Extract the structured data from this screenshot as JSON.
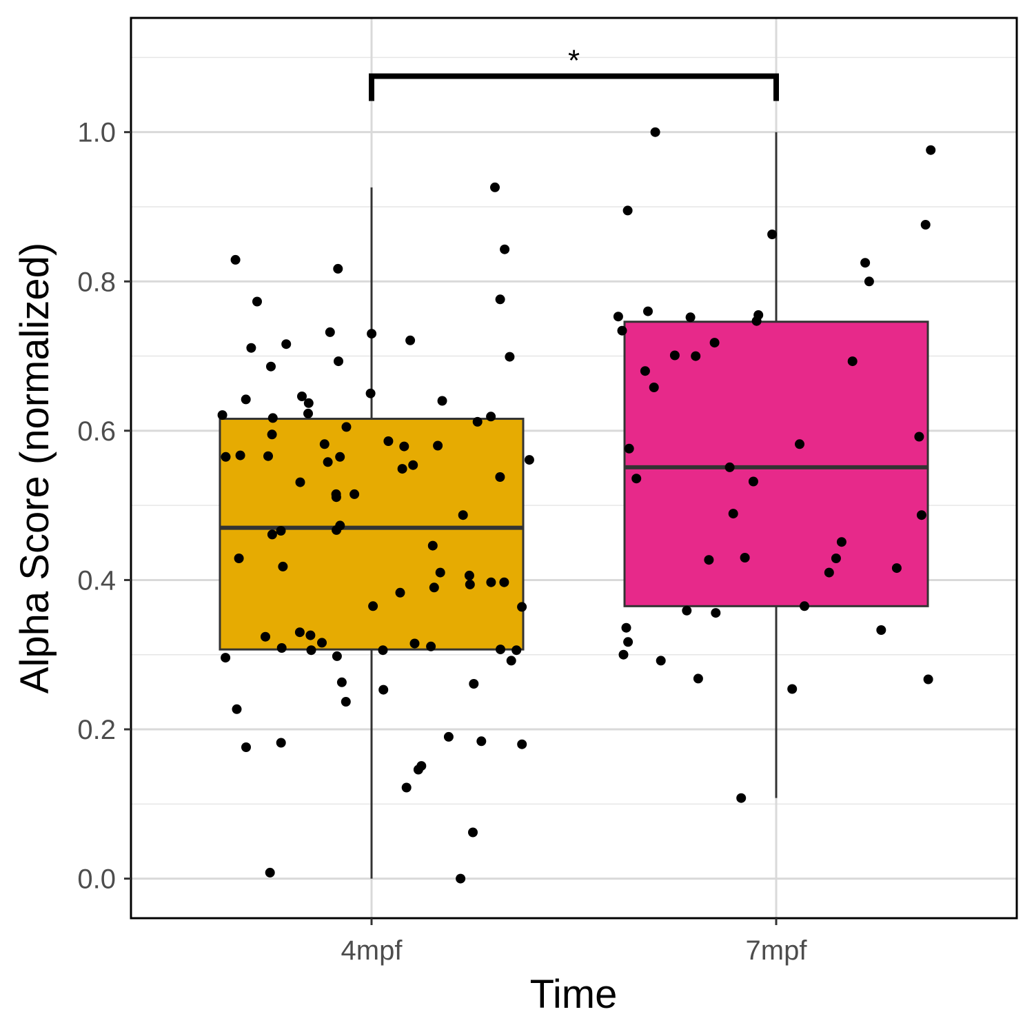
{
  "chart_data": {
    "type": "box",
    "xlabel": "Time",
    "ylabel": "Alpha Score (normalized)",
    "ylim": [
      -0.053,
      1.153
    ],
    "yticks": [
      0.0,
      0.2,
      0.4,
      0.6,
      0.8,
      1.0
    ],
    "ytick_labels": [
      "0.0",
      "0.2",
      "0.4",
      "0.6",
      "0.8",
      "1.0"
    ],
    "grid": true,
    "categories": [
      "4mpf",
      "7mpf"
    ],
    "boxes": [
      {
        "category": "4mpf",
        "color": "#E6AB02",
        "min": 0.0,
        "q1": 0.307,
        "median": 0.47,
        "q3": 0.616,
        "max": 0.926
      },
      {
        "category": "7mpf",
        "color": "#E7298A",
        "min": 0.108,
        "q1": 0.365,
        "median": 0.551,
        "q3": 0.746,
        "max": 1.0
      }
    ],
    "points": [
      {
        "category": "4mpf",
        "values": [
          0.926,
          0.843,
          0.829,
          0.817,
          0.776,
          0.773,
          0.732,
          0.73,
          0.721,
          0.716,
          0.711,
          0.699,
          0.693,
          0.686,
          0.65,
          0.646,
          0.642,
          0.64,
          0.637,
          0.623,
          0.621,
          0.619,
          0.617,
          0.612,
          0.605,
          0.595,
          0.586,
          0.582,
          0.58,
          0.579,
          0.567,
          0.566,
          0.565,
          0.565,
          0.561,
          0.558,
          0.554,
          0.549,
          0.538,
          0.531,
          0.515,
          0.515,
          0.511,
          0.487,
          0.473,
          0.467,
          0.466,
          0.461,
          0.446,
          0.429,
          0.418,
          0.41,
          0.406,
          0.397,
          0.397,
          0.394,
          0.39,
          0.383,
          0.365,
          0.364,
          0.33,
          0.326,
          0.324,
          0.316,
          0.315,
          0.311,
          0.309,
          0.307,
          0.306,
          0.306,
          0.306,
          0.298,
          0.296,
          0.292,
          0.263,
          0.261,
          0.253,
          0.237,
          0.227,
          0.19,
          0.184,
          0.182,
          0.18,
          0.176,
          0.151,
          0.146,
          0.122,
          0.062,
          0.008,
          0.0
        ]
      },
      {
        "category": "7mpf",
        "values": [
          1.0,
          0.976,
          0.895,
          0.876,
          0.863,
          0.825,
          0.8,
          0.76,
          0.755,
          0.753,
          0.752,
          0.747,
          0.734,
          0.718,
          0.701,
          0.7,
          0.693,
          0.68,
          0.658,
          0.592,
          0.582,
          0.576,
          0.551,
          0.536,
          0.532,
          0.489,
          0.487,
          0.451,
          0.43,
          0.429,
          0.427,
          0.416,
          0.41,
          0.365,
          0.359,
          0.356,
          0.336,
          0.333,
          0.317,
          0.3,
          0.292,
          0.268,
          0.267,
          0.254,
          0.108
        ]
      }
    ],
    "significance": {
      "from": "4mpf",
      "to": "7mpf",
      "label": "*",
      "y": 1.075
    }
  }
}
